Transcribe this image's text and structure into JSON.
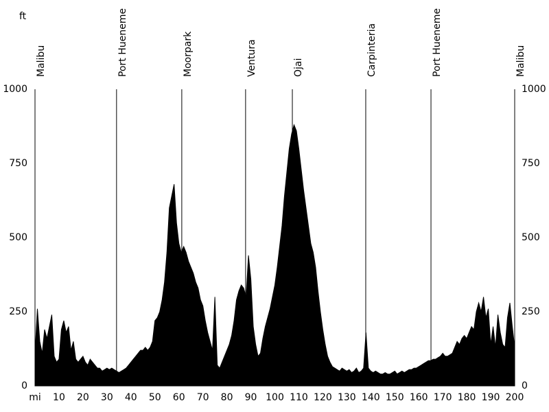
{
  "chart_data": {
    "type": "area",
    "y_label": "ft",
    "color": "#000000",
    "x": [
      0,
      1,
      2,
      3,
      4,
      5,
      6,
      7,
      8,
      9,
      10,
      11,
      12,
      13,
      14,
      15,
      16,
      17,
      18,
      19,
      20,
      21,
      22,
      23,
      24,
      25,
      26,
      27,
      28,
      29,
      30,
      31,
      32,
      33,
      34,
      35,
      36,
      37,
      38,
      39,
      40,
      41,
      42,
      43,
      44,
      45,
      46,
      47,
      48,
      49,
      50,
      51,
      52,
      53,
      54,
      55,
      56,
      57,
      58,
      59,
      60,
      61,
      62,
      63,
      64,
      65,
      66,
      67,
      68,
      69,
      70,
      71,
      72,
      73,
      74,
      75,
      76,
      77,
      78,
      79,
      80,
      81,
      82,
      83,
      84,
      85,
      86,
      87,
      88,
      89,
      90,
      91,
      92,
      93,
      94,
      95,
      96,
      97,
      98,
      99,
      100,
      101,
      102,
      103,
      104,
      105,
      106,
      107,
      108,
      109,
      110,
      111,
      112,
      113,
      114,
      115,
      116,
      117,
      118,
      119,
      120,
      121,
      122,
      123,
      124,
      125,
      126,
      127,
      128,
      129,
      130,
      131,
      132,
      133,
      134,
      135,
      136,
      137,
      138,
      139,
      140,
      141,
      142,
      143,
      144,
      145,
      146,
      147,
      148,
      149,
      150,
      151,
      152,
      153,
      154,
      155,
      156,
      157,
      158,
      159,
      160,
      161,
      162,
      163,
      164,
      165,
      166,
      167,
      168,
      169,
      170,
      171,
      172,
      173,
      174,
      175,
      176,
      177,
      178,
      179,
      180,
      181,
      182,
      183,
      184,
      185,
      186,
      187,
      188,
      189,
      190,
      191,
      192,
      193,
      194,
      195,
      196,
      197,
      198,
      199,
      200
    ],
    "values": [
      110,
      260,
      150,
      110,
      190,
      160,
      200,
      240,
      100,
      80,
      90,
      190,
      220,
      180,
      200,
      120,
      150,
      90,
      80,
      90,
      100,
      80,
      70,
      90,
      80,
      70,
      60,
      60,
      50,
      55,
      60,
      55,
      60,
      55,
      50,
      45,
      50,
      55,
      60,
      70,
      80,
      90,
      100,
      110,
      120,
      120,
      130,
      120,
      130,
      150,
      220,
      230,
      250,
      290,
      350,
      450,
      600,
      640,
      680,
      550,
      480,
      450,
      470,
      450,
      420,
      400,
      380,
      350,
      330,
      290,
      270,
      220,
      180,
      150,
      120,
      300,
      70,
      60,
      80,
      100,
      120,
      140,
      170,
      220,
      290,
      320,
      340,
      330,
      300,
      440,
      360,
      200,
      140,
      100,
      110,
      160,
      200,
      230,
      260,
      300,
      340,
      400,
      470,
      540,
      640,
      720,
      800,
      850,
      880,
      860,
      800,
      730,
      660,
      600,
      540,
      480,
      450,
      400,
      320,
      250,
      190,
      140,
      100,
      80,
      65,
      60,
      55,
      50,
      60,
      55,
      50,
      55,
      45,
      50,
      60,
      45,
      50,
      60,
      180,
      60,
      50,
      45,
      50,
      45,
      40,
      40,
      45,
      40,
      40,
      45,
      50,
      40,
      45,
      50,
      45,
      50,
      55,
      55,
      60,
      60,
      65,
      70,
      75,
      80,
      85,
      85,
      90,
      90,
      95,
      100,
      110,
      100,
      100,
      105,
      110,
      130,
      150,
      140,
      160,
      170,
      160,
      180,
      200,
      190,
      250,
      280,
      250,
      300,
      230,
      260,
      140,
      200,
      130,
      240,
      180,
      140,
      130,
      230,
      280,
      200,
      130
    ],
    "places": [
      {
        "name": "Malibu",
        "x": 0
      },
      {
        "name": "Port Hueneme",
        "x": 34
      },
      {
        "name": "Moorpark",
        "x": 61.2
      },
      {
        "name": "Ventura",
        "x": 87.8
      },
      {
        "name": "Ojai",
        "x": 107.3
      },
      {
        "name": "Carpinteria",
        "x": 137.9
      },
      {
        "name": "Port Hueneme",
        "x": 165.1
      },
      {
        "name": "Malibu",
        "x": 200
      }
    ],
    "xlim": [
      0,
      200
    ],
    "ylim": [
      0,
      1000
    ],
    "xticks": [
      {
        "value": 0,
        "label": "mi"
      },
      10,
      20,
      30,
      40,
      50,
      60,
      70,
      80,
      90,
      100,
      110,
      120,
      130,
      140,
      150,
      160,
      170,
      180,
      190,
      200
    ],
    "yticks": [
      0,
      250,
      500,
      750,
      1000
    ]
  }
}
